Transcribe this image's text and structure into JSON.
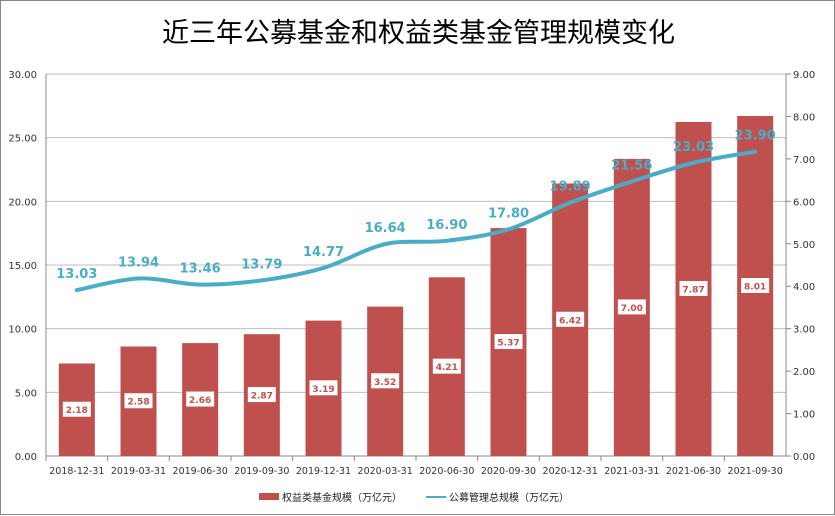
{
  "chart_data": {
    "type": "bar+line",
    "title": "近三年公募基金和权益类基金管理规模变化",
    "categories": [
      "2018-12-31",
      "2019-03-31",
      "2019-06-30",
      "2019-09-30",
      "2019-12-31",
      "2020-03-31",
      "2020-06-30",
      "2020-09-30",
      "2020-12-31",
      "2021-03-31",
      "2021-06-30",
      "2021-09-30"
    ],
    "series": [
      {
        "name": "权益类基金规模（万亿元）",
        "type": "bar",
        "axis": "right",
        "color": "#C0504D",
        "values": [
          2.18,
          2.58,
          2.66,
          2.87,
          3.19,
          3.52,
          4.21,
          5.37,
          6.42,
          7.0,
          7.87,
          8.01
        ]
      },
      {
        "name": "公募管理总规模（万亿元）",
        "type": "line",
        "axis": "left",
        "color": "#4BACC6",
        "values": [
          13.03,
          13.94,
          13.46,
          13.79,
          14.77,
          16.64,
          16.9,
          17.8,
          19.89,
          21.56,
          23.03,
          23.9
        ]
      }
    ],
    "left_axis": {
      "ylim": [
        0,
        30
      ],
      "ticks": [
        "0.00",
        "5.00",
        "10.00",
        "15.00",
        "20.00",
        "25.00",
        "30.00"
      ]
    },
    "right_axis": {
      "ylim": [
        0,
        9
      ],
      "ticks": [
        "0.00",
        "1.00",
        "2.00",
        "3.00",
        "4.00",
        "5.00",
        "6.00",
        "7.00",
        "8.00",
        "9.00"
      ]
    },
    "grid": true,
    "legend": "bottom"
  }
}
